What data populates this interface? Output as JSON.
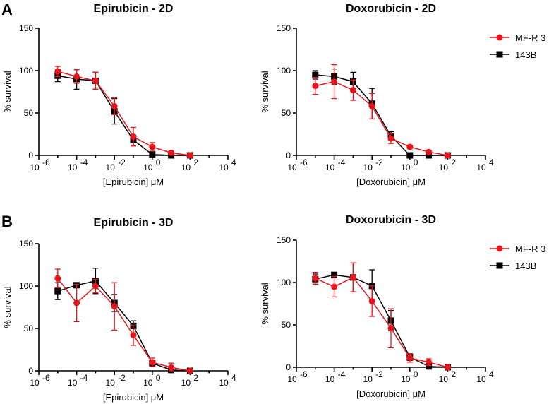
{
  "panel_letters": [
    "A",
    "B"
  ],
  "colors": {
    "red_series": "#e8141c",
    "black_series": "#000000"
  },
  "chart_data": [
    {
      "type": "line",
      "title": "Epirubicin - 2D",
      "xlabel": "[Epirubicin] μM",
      "ylabel": "% survival",
      "xscale": "log",
      "xlim_exp": [
        -6,
        4
      ],
      "xticks": [
        {
          "base": "10",
          "exp": "-6"
        },
        {
          "base": "10",
          "exp": "-4"
        },
        {
          "base": "10",
          "exp": "-2"
        },
        {
          "base": "10",
          "exp": "0"
        },
        {
          "base": "10",
          "exp": "2"
        },
        {
          "base": "10",
          "exp": "4"
        }
      ],
      "ylim": [
        0,
        150
      ],
      "yticks": [
        "0",
        "50",
        "100",
        "150"
      ],
      "legend": false,
      "series": [
        {
          "name": "MF-R 3",
          "marker": "circle",
          "color": "#e8141c",
          "x_exp": [
            -5,
            -4,
            -3,
            -2,
            -1,
            0,
            1,
            2
          ],
          "y": [
            99,
            93,
            88,
            58,
            22,
            10,
            3,
            0
          ],
          "err": [
            6,
            8,
            10,
            10,
            11,
            5,
            2,
            1
          ]
        },
        {
          "name": "143B",
          "marker": "square",
          "color": "#000000",
          "x_exp": [
            -5,
            -4,
            -3,
            -2,
            -1,
            0,
            1,
            2
          ],
          "y": [
            94,
            90,
            88,
            52,
            18,
            1,
            0,
            0
          ],
          "err": [
            7,
            12,
            10,
            15,
            6,
            1,
            1,
            0
          ]
        }
      ]
    },
    {
      "type": "line",
      "title": "Doxorubicin - 2D",
      "xlabel": "[Doxorubicin] μM",
      "ylabel": "% survival",
      "xscale": "log",
      "xlim_exp": [
        -6,
        4
      ],
      "xticks": [
        {
          "base": "10",
          "exp": "-6"
        },
        {
          "base": "10",
          "exp": "-4"
        },
        {
          "base": "10",
          "exp": "-2"
        },
        {
          "base": "10",
          "exp": "0"
        },
        {
          "base": "10",
          "exp": "2"
        },
        {
          "base": "10",
          "exp": "4"
        }
      ],
      "ylim": [
        0,
        150
      ],
      "yticks": [
        "0",
        "50",
        "100",
        "150"
      ],
      "legend": true,
      "series": [
        {
          "name": "MF-R 3",
          "marker": "circle",
          "color": "#e8141c",
          "x_exp": [
            -5,
            -4,
            -3,
            -2,
            -1,
            0,
            1,
            2
          ],
          "y": [
            82,
            87,
            77,
            58,
            20,
            10,
            4,
            0
          ],
          "err": [
            10,
            20,
            12,
            15,
            6,
            2,
            2,
            1
          ]
        },
        {
          "name": "143B",
          "marker": "square",
          "color": "#000000",
          "x_exp": [
            -5,
            -4,
            -3,
            -2,
            -1,
            0,
            1,
            2
          ],
          "y": [
            95,
            93,
            87,
            61,
            23,
            0,
            0,
            0
          ],
          "err": [
            5,
            9,
            11,
            18,
            5,
            1,
            1,
            0
          ]
        }
      ]
    },
    {
      "type": "line",
      "title": "Epirubicin - 3D",
      "xlabel": "[Epirubicin] μM",
      "ylabel": "% survival",
      "xscale": "log",
      "xlim_exp": [
        -6,
        4
      ],
      "xticks": [
        {
          "base": "10",
          "exp": "-6"
        },
        {
          "base": "10",
          "exp": "-4"
        },
        {
          "base": "10",
          "exp": "-2"
        },
        {
          "base": "10",
          "exp": "0"
        },
        {
          "base": "10",
          "exp": "2"
        },
        {
          "base": "10",
          "exp": "4"
        }
      ],
      "ylim": [
        0,
        150
      ],
      "yticks": [
        "0",
        "50",
        "100",
        "150"
      ],
      "legend": false,
      "series": [
        {
          "name": "MF-R 3",
          "marker": "circle",
          "color": "#e8141c",
          "x_exp": [
            -5,
            -4,
            -3,
            -2,
            -1,
            0,
            1,
            2
          ],
          "y": [
            109,
            80,
            100,
            76,
            42,
            10,
            4,
            0
          ],
          "err": [
            11,
            22,
            8,
            28,
            12,
            5,
            5,
            1
          ]
        },
        {
          "name": "143B",
          "marker": "square",
          "color": "#000000",
          "x_exp": [
            -5,
            -4,
            -3,
            -2,
            -1,
            0,
            1,
            2
          ],
          "y": [
            94,
            101,
            106,
            80,
            53,
            9,
            1,
            0
          ],
          "err": [
            10,
            2,
            15,
            10,
            6,
            3,
            1,
            0
          ]
        }
      ]
    },
    {
      "type": "line",
      "title": "Doxorubicin - 3D",
      "xlabel": "[Doxorubicin] μM",
      "ylabel": "% survival",
      "xscale": "log",
      "xlim_exp": [
        -6,
        4
      ],
      "xticks": [
        {
          "base": "10",
          "exp": "-6"
        },
        {
          "base": "10",
          "exp": "-4"
        },
        {
          "base": "10",
          "exp": "-2"
        },
        {
          "base": "10",
          "exp": "0"
        },
        {
          "base": "10",
          "exp": "2"
        },
        {
          "base": "10",
          "exp": "4"
        }
      ],
      "ylim": [
        0,
        150
      ],
      "yticks": [
        "0",
        "50",
        "100",
        "150"
      ],
      "legend": true,
      "series": [
        {
          "name": "MF-R 3",
          "marker": "circle",
          "color": "#e8141c",
          "x_exp": [
            -5,
            -4,
            -3,
            -2,
            -1,
            0,
            1,
            2
          ],
          "y": [
            105,
            95,
            106,
            78,
            46,
            11,
            6,
            0
          ],
          "err": [
            7,
            12,
            17,
            18,
            23,
            5,
            4,
            1
          ]
        },
        {
          "name": "143B",
          "marker": "square",
          "color": "#000000",
          "x_exp": [
            -5,
            -4,
            -3,
            -2,
            -1,
            0,
            1,
            2
          ],
          "y": [
            104,
            109,
            106,
            96,
            55,
            12,
            1,
            0
          ],
          "err": [
            6,
            2,
            17,
            19,
            12,
            4,
            1,
            0
          ]
        }
      ]
    }
  ]
}
